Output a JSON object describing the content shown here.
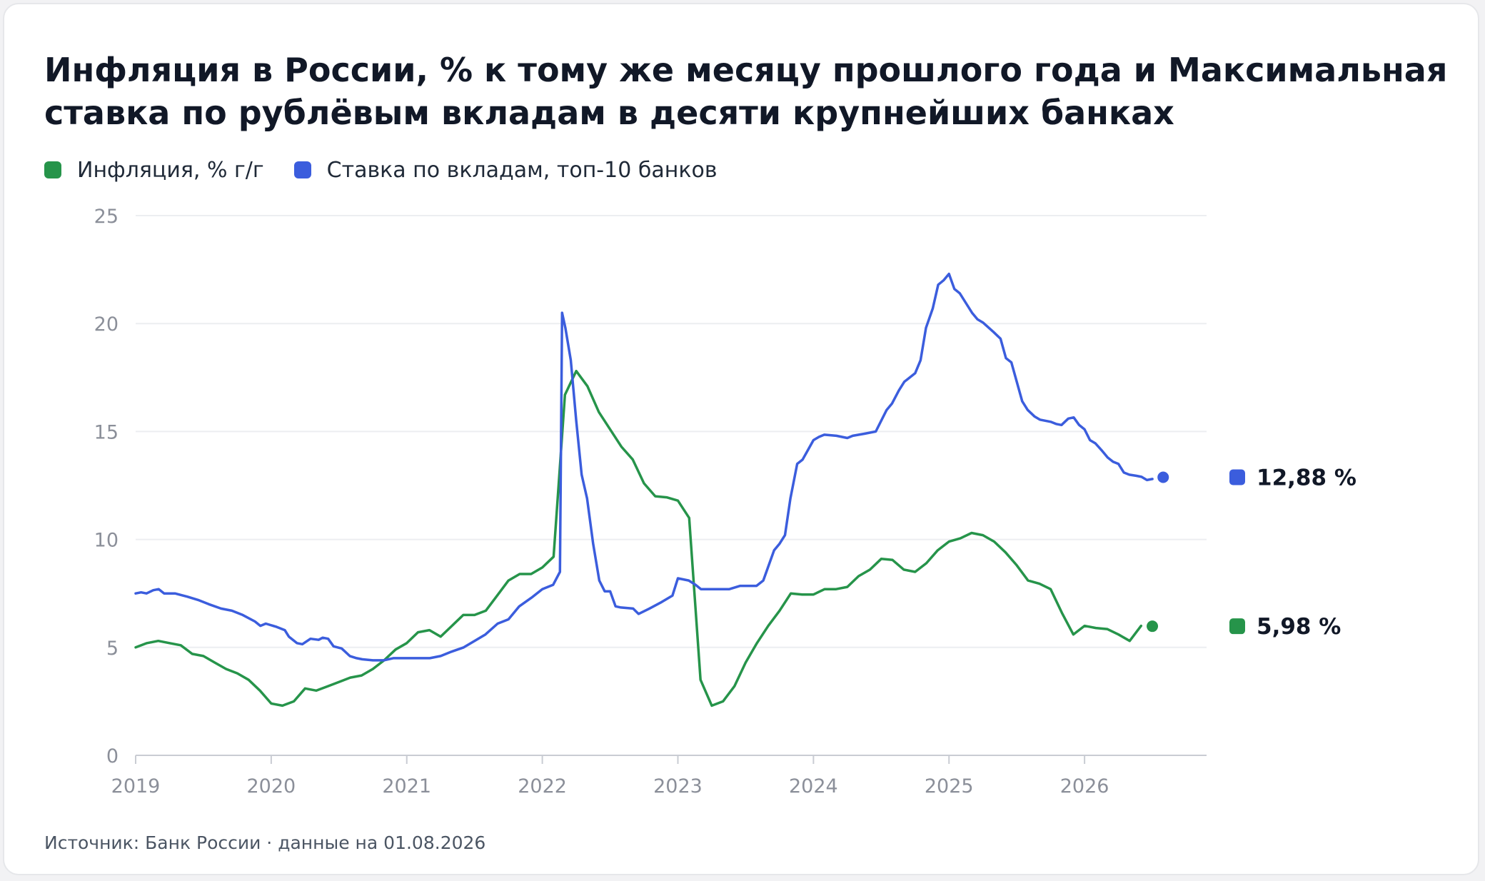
{
  "chart_data": {
    "type": "line",
    "title": "Инфляция в России, % к тому же месяцу прошлого года и Максимальная ставка по рублёвым вкладам в десяти крупнейших банках",
    "source": "Источник: Банк России · данные на 01.08.2026",
    "xlim": [
      2019.0,
      2026.9
    ],
    "ylim": [
      0,
      25
    ],
    "x_ticks": [
      "2019",
      "2020",
      "2021",
      "2022",
      "2023",
      "2024",
      "2025",
      "2026"
    ],
    "y_ticks": [
      "0",
      "5",
      "10",
      "15",
      "20",
      "25"
    ],
    "grid": true,
    "legend_position": "top-left",
    "series": [
      {
        "name": "Инфляция, % г/г",
        "color": "#26944a",
        "end_label": "5,98 %",
        "points": [
          [
            2019.0,
            5.0
          ],
          [
            2019.083,
            5.2
          ],
          [
            2019.167,
            5.3
          ],
          [
            2019.25,
            5.2
          ],
          [
            2019.333,
            5.1
          ],
          [
            2019.417,
            4.7
          ],
          [
            2019.5,
            4.6
          ],
          [
            2019.583,
            4.3
          ],
          [
            2019.667,
            4.0
          ],
          [
            2019.75,
            3.8
          ],
          [
            2019.833,
            3.5
          ],
          [
            2019.917,
            3.0
          ],
          [
            2020.0,
            2.4
          ],
          [
            2020.083,
            2.3
          ],
          [
            2020.167,
            2.5
          ],
          [
            2020.25,
            3.1
          ],
          [
            2020.333,
            3.0
          ],
          [
            2020.417,
            3.2
          ],
          [
            2020.5,
            3.4
          ],
          [
            2020.583,
            3.6
          ],
          [
            2020.667,
            3.7
          ],
          [
            2020.75,
            4.0
          ],
          [
            2020.833,
            4.4
          ],
          [
            2020.917,
            4.9
          ],
          [
            2021.0,
            5.2
          ],
          [
            2021.083,
            5.7
          ],
          [
            2021.167,
            5.8
          ],
          [
            2021.25,
            5.5
          ],
          [
            2021.333,
            6.0
          ],
          [
            2021.417,
            6.5
          ],
          [
            2021.5,
            6.5
          ],
          [
            2021.583,
            6.7
          ],
          [
            2021.667,
            7.4
          ],
          [
            2021.75,
            8.1
          ],
          [
            2021.833,
            8.4
          ],
          [
            2021.917,
            8.4
          ],
          [
            2022.0,
            8.7
          ],
          [
            2022.083,
            9.2
          ],
          [
            2022.167,
            16.7
          ],
          [
            2022.25,
            17.8
          ],
          [
            2022.333,
            17.1
          ],
          [
            2022.417,
            15.9
          ],
          [
            2022.5,
            15.1
          ],
          [
            2022.583,
            14.3
          ],
          [
            2022.667,
            13.7
          ],
          [
            2022.75,
            12.6
          ],
          [
            2022.833,
            12.0
          ],
          [
            2022.917,
            11.95
          ],
          [
            2023.0,
            11.8
          ],
          [
            2023.083,
            11.0
          ],
          [
            2023.167,
            3.5
          ],
          [
            2023.25,
            2.3
          ],
          [
            2023.333,
            2.5
          ],
          [
            2023.417,
            3.2
          ],
          [
            2023.5,
            4.3
          ],
          [
            2023.583,
            5.2
          ],
          [
            2023.667,
            6.0
          ],
          [
            2023.75,
            6.7
          ],
          [
            2023.833,
            7.5
          ],
          [
            2023.917,
            7.45
          ],
          [
            2024.0,
            7.45
          ],
          [
            2024.083,
            7.7
          ],
          [
            2024.167,
            7.7
          ],
          [
            2024.25,
            7.8
          ],
          [
            2024.333,
            8.3
          ],
          [
            2024.417,
            8.6
          ],
          [
            2024.5,
            9.1
          ],
          [
            2024.583,
            9.05
          ],
          [
            2024.667,
            8.6
          ],
          [
            2024.75,
            8.5
          ],
          [
            2024.833,
            8.9
          ],
          [
            2024.917,
            9.5
          ],
          [
            2025.0,
            9.9
          ],
          [
            2025.083,
            10.05
          ],
          [
            2025.167,
            10.3
          ],
          [
            2025.25,
            10.2
          ],
          [
            2025.333,
            9.9
          ],
          [
            2025.417,
            9.4
          ],
          [
            2025.5,
            8.8
          ],
          [
            2025.583,
            8.1
          ],
          [
            2025.667,
            7.95
          ],
          [
            2025.75,
            7.7
          ],
          [
            2025.833,
            6.6
          ],
          [
            2025.917,
            5.6
          ],
          [
            2026.0,
            6.0
          ],
          [
            2026.083,
            5.9
          ],
          [
            2026.167,
            5.85
          ],
          [
            2026.25,
            5.6
          ],
          [
            2026.333,
            5.3
          ],
          [
            2026.417,
            6.0
          ]
        ],
        "last_point": [
          2026.5,
          5.98
        ]
      },
      {
        "name": "Ставка по вкладам, топ-10 банков",
        "color": "#3b5ddd",
        "end_label": "12,88 %",
        "points": [
          [
            2019.0,
            7.5
          ],
          [
            2019.04,
            7.55
          ],
          [
            2019.08,
            7.5
          ],
          [
            2019.13,
            7.65
          ],
          [
            2019.17,
            7.7
          ],
          [
            2019.21,
            7.5
          ],
          [
            2019.29,
            7.5
          ],
          [
            2019.38,
            7.35
          ],
          [
            2019.46,
            7.2
          ],
          [
            2019.54,
            7.0
          ],
          [
            2019.63,
            6.8
          ],
          [
            2019.71,
            6.7
          ],
          [
            2019.79,
            6.5
          ],
          [
            2019.88,
            6.2
          ],
          [
            2019.92,
            6.0
          ],
          [
            2019.96,
            6.1
          ],
          [
            2020.04,
            5.95
          ],
          [
            2020.1,
            5.8
          ],
          [
            2020.13,
            5.5
          ],
          [
            2020.19,
            5.2
          ],
          [
            2020.23,
            5.15
          ],
          [
            2020.29,
            5.4
          ],
          [
            2020.35,
            5.35
          ],
          [
            2020.38,
            5.45
          ],
          [
            2020.42,
            5.4
          ],
          [
            2020.46,
            5.05
          ],
          [
            2020.52,
            4.95
          ],
          [
            2020.58,
            4.6
          ],
          [
            2020.63,
            4.5
          ],
          [
            2020.67,
            4.45
          ],
          [
            2020.75,
            4.4
          ],
          [
            2020.83,
            4.4
          ],
          [
            2020.9,
            4.5
          ],
          [
            2021.0,
            4.5
          ],
          [
            2021.08,
            4.5
          ],
          [
            2021.17,
            4.5
          ],
          [
            2021.25,
            4.6
          ],
          [
            2021.33,
            4.8
          ],
          [
            2021.42,
            5.0
          ],
          [
            2021.5,
            5.3
          ],
          [
            2021.58,
            5.6
          ],
          [
            2021.67,
            6.1
          ],
          [
            2021.75,
            6.3
          ],
          [
            2021.83,
            6.9
          ],
          [
            2021.92,
            7.3
          ],
          [
            2022.0,
            7.7
          ],
          [
            2022.08,
            7.9
          ],
          [
            2022.13,
            8.5
          ],
          [
            2022.146,
            20.5
          ],
          [
            2022.17,
            19.8
          ],
          [
            2022.21,
            18.3
          ],
          [
            2022.25,
            15.5
          ],
          [
            2022.29,
            13.0
          ],
          [
            2022.33,
            11.9
          ],
          [
            2022.375,
            9.8
          ],
          [
            2022.42,
            8.1
          ],
          [
            2022.46,
            7.6
          ],
          [
            2022.5,
            7.6
          ],
          [
            2022.54,
            6.9
          ],
          [
            2022.58,
            6.85
          ],
          [
            2022.67,
            6.8
          ],
          [
            2022.71,
            6.55
          ],
          [
            2022.79,
            6.8
          ],
          [
            2022.88,
            7.1
          ],
          [
            2022.96,
            7.4
          ],
          [
            2023.0,
            8.2
          ],
          [
            2023.08,
            8.1
          ],
          [
            2023.13,
            7.9
          ],
          [
            2023.17,
            7.7
          ],
          [
            2023.29,
            7.7
          ],
          [
            2023.38,
            7.7
          ],
          [
            2023.46,
            7.85
          ],
          [
            2023.58,
            7.85
          ],
          [
            2023.63,
            8.1
          ],
          [
            2023.67,
            8.8
          ],
          [
            2023.71,
            9.5
          ],
          [
            2023.75,
            9.8
          ],
          [
            2023.79,
            10.2
          ],
          [
            2023.83,
            11.9
          ],
          [
            2023.88,
            13.5
          ],
          [
            2023.92,
            13.7
          ],
          [
            2024.0,
            14.6
          ],
          [
            2024.04,
            14.75
          ],
          [
            2024.08,
            14.85
          ],
          [
            2024.17,
            14.8
          ],
          [
            2024.25,
            14.7
          ],
          [
            2024.29,
            14.8
          ],
          [
            2024.38,
            14.9
          ],
          [
            2024.46,
            15.0
          ],
          [
            2024.54,
            16.0
          ],
          [
            2024.58,
            16.3
          ],
          [
            2024.63,
            16.9
          ],
          [
            2024.67,
            17.3
          ],
          [
            2024.75,
            17.7
          ],
          [
            2024.79,
            18.3
          ],
          [
            2024.83,
            19.8
          ],
          [
            2024.88,
            20.7
          ],
          [
            2024.92,
            21.8
          ],
          [
            2024.96,
            22.0
          ],
          [
            2025.0,
            22.3
          ],
          [
            2025.04,
            21.6
          ],
          [
            2025.08,
            21.4
          ],
          [
            2025.13,
            20.9
          ],
          [
            2025.17,
            20.5
          ],
          [
            2025.21,
            20.2
          ],
          [
            2025.25,
            20.05
          ],
          [
            2025.33,
            19.6
          ],
          [
            2025.38,
            19.3
          ],
          [
            2025.42,
            18.4
          ],
          [
            2025.46,
            18.2
          ],
          [
            2025.54,
            16.4
          ],
          [
            2025.58,
            16.0
          ],
          [
            2025.63,
            15.7
          ],
          [
            2025.67,
            15.55
          ],
          [
            2025.75,
            15.45
          ],
          [
            2025.79,
            15.35
          ],
          [
            2025.83,
            15.3
          ],
          [
            2025.88,
            15.6
          ],
          [
            2025.92,
            15.65
          ],
          [
            2025.96,
            15.3
          ],
          [
            2026.0,
            15.1
          ],
          [
            2026.04,
            14.6
          ],
          [
            2026.08,
            14.45
          ],
          [
            2026.13,
            14.1
          ],
          [
            2026.17,
            13.8
          ],
          [
            2026.21,
            13.6
          ],
          [
            2026.25,
            13.5
          ],
          [
            2026.29,
            13.1
          ],
          [
            2026.33,
            13.0
          ],
          [
            2026.38,
            12.95
          ],
          [
            2026.42,
            12.9
          ],
          [
            2026.46,
            12.75
          ],
          [
            2026.5,
            12.8
          ]
        ],
        "last_point": [
          2026.58,
          12.88
        ]
      }
    ]
  }
}
